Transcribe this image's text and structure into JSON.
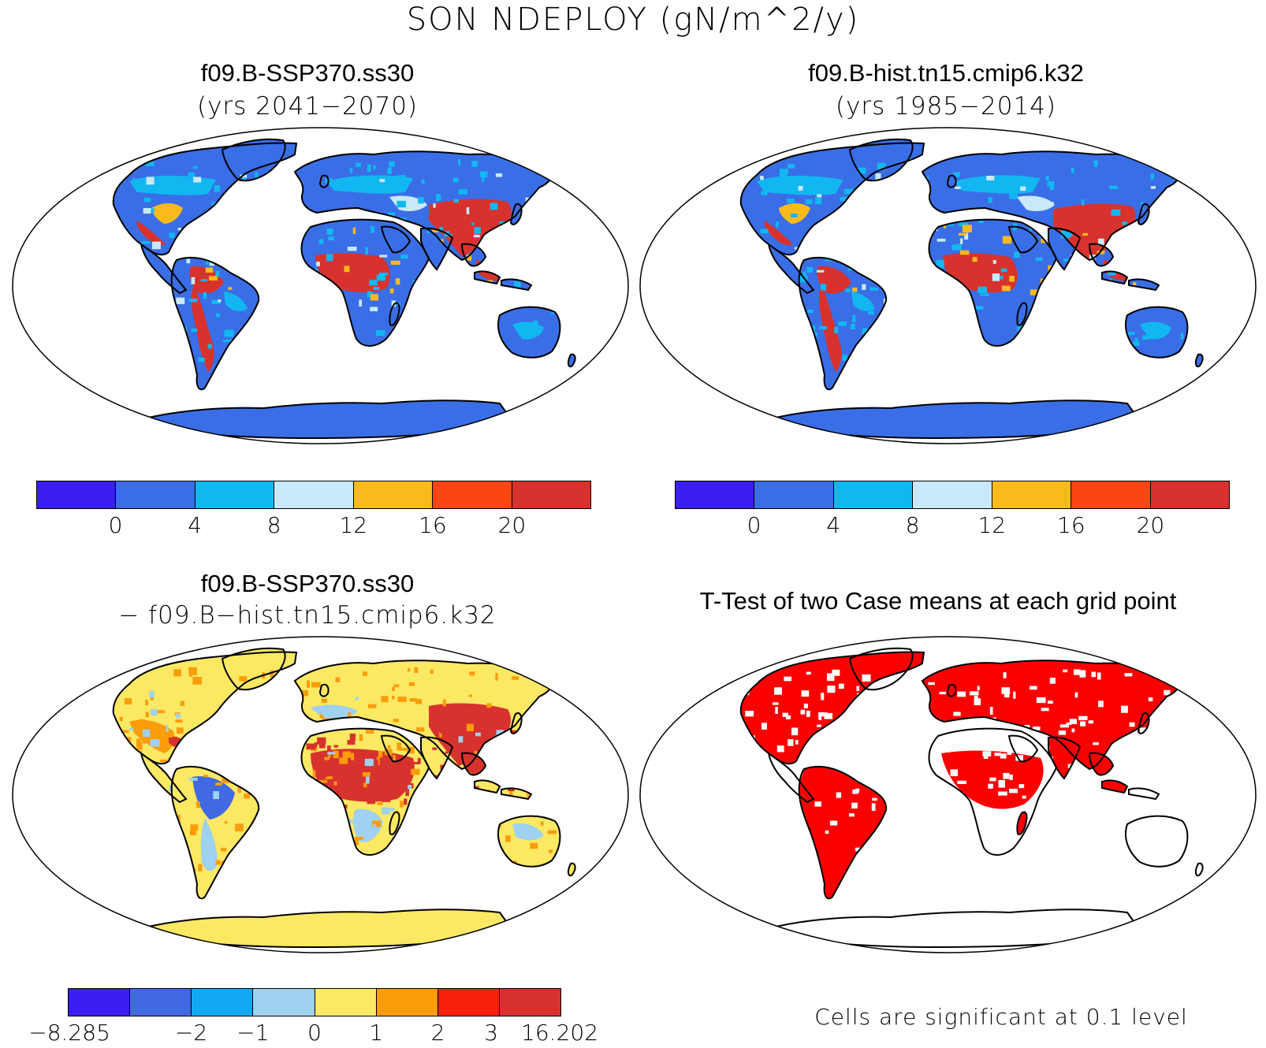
{
  "figure": {
    "title": "SON NDEPLOY (gN/m^2/y)"
  },
  "panels": {
    "top_left": {
      "title": "f09.B-SSP370.ss30",
      "subtitle": "(yrs 2041−2070)"
    },
    "top_right": {
      "title": "f09.B-hist.tn15.cmip6.k32",
      "subtitle": "(yrs 1985−2014)"
    },
    "bottom_left": {
      "title": "f09.B-SSP370.ss30",
      "subtitle": "− f09.B−hist.tn15.cmip6.k32"
    },
    "bottom_right": {
      "title": "T-Test of two Case means at each grid point",
      "note": "Cells are significant at 0.1 level"
    }
  },
  "colorbars": {
    "absolute": {
      "colors": [
        "#3b1ff0",
        "#3a6ee6",
        "#12b7f2",
        "#c8e9f7",
        "#fbba1c",
        "#fb4513",
        "#d8322e"
      ],
      "labels": [
        "0",
        "4",
        "8",
        "12",
        "16",
        "20"
      ]
    },
    "difference": {
      "colors": [
        "#3b1ff0",
        "#4169e1",
        "#12a9f2",
        "#9fd1f0",
        "#fbe863",
        "#fb9c0b",
        "#fb200c",
        "#d8322e"
      ],
      "labels": [
        "−8.285",
        "−2",
        "−1",
        "0",
        "1",
        "2",
        "3",
        "16.202"
      ]
    }
  },
  "colors": {
    "ocean": "#ffffff",
    "coast": "#000000",
    "significant": "#fb0000",
    "abs_base": "#3a6ee6",
    "abs_mid": "#12b7f2",
    "abs_light": "#c8e9f7",
    "abs_orange": "#fbba1c",
    "abs_red": "#d8322e",
    "diff_base": "#fbe863",
    "diff_orange": "#fb9c0b",
    "diff_red": "#d8322e",
    "diff_blue": "#4169e1",
    "diff_lightblue": "#9fd1f0"
  }
}
